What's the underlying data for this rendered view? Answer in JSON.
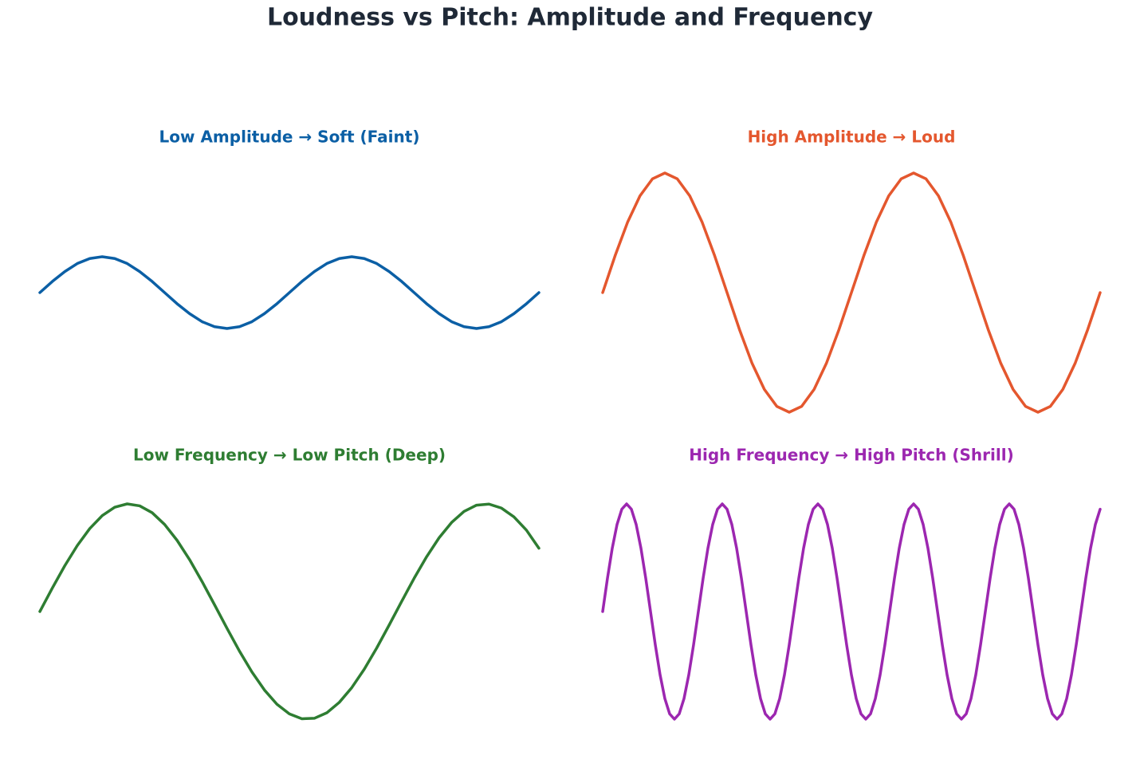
{
  "title": "Loudness vs Pitch: Amplitude and Frequency",
  "chart_data": [
    {
      "type": "line",
      "title": "Low Amplitude → Soft (Faint)",
      "xlim": [
        0,
        10.4
      ],
      "ylim": [
        -1.2,
        1.2
      ],
      "x": [
        0,
        0.26,
        0.52,
        0.78,
        1.04,
        1.3,
        1.56,
        1.82,
        2.08,
        2.34,
        2.6,
        2.86,
        3.12,
        3.38,
        3.64,
        3.9,
        4.16,
        4.42,
        4.68,
        4.94,
        5.2,
        5.46,
        5.72,
        5.98,
        6.24,
        6.5,
        6.76,
        7.02,
        7.28,
        7.54,
        7.8,
        8.06,
        8.32,
        8.58,
        8.84,
        9.1,
        9.36,
        9.62,
        9.88,
        10.14,
        10.4
      ],
      "series": [
        {
          "color": "#0b5fa5",
          "values": [
            0,
            0.093,
            0.176,
            0.243,
            0.285,
            0.3,
            0.285,
            0.243,
            0.176,
            0.093,
            0,
            -0.093,
            -0.176,
            -0.243,
            -0.285,
            -0.3,
            -0.285,
            -0.243,
            -0.176,
            -0.093,
            0,
            0.093,
            0.176,
            0.243,
            0.285,
            0.3,
            0.285,
            0.243,
            0.176,
            0.093,
            0,
            -0.093,
            -0.176,
            -0.243,
            -0.285,
            -0.3,
            -0.285,
            -0.243,
            -0.176,
            -0.093,
            0
          ]
        }
      ]
    },
    {
      "type": "line",
      "title": "High Amplitude → Loud",
      "xlim": [
        0,
        10.4
      ],
      "ylim": [
        -1.2,
        1.2
      ],
      "x": [
        0,
        0.26,
        0.52,
        0.78,
        1.04,
        1.3,
        1.56,
        1.82,
        2.08,
        2.34,
        2.6,
        2.86,
        3.12,
        3.38,
        3.64,
        3.9,
        4.16,
        4.42,
        4.68,
        4.94,
        5.2,
        5.46,
        5.72,
        5.98,
        6.24,
        6.5,
        6.76,
        7.02,
        7.28,
        7.54,
        7.8,
        8.06,
        8.32,
        8.58,
        8.84,
        9.1,
        9.36,
        9.62,
        9.88,
        10.14,
        10.4
      ],
      "series": [
        {
          "color": "#e4572e",
          "values": [
            0,
            0.309,
            0.588,
            0.809,
            0.951,
            1,
            0.951,
            0.809,
            0.588,
            0.309,
            0,
            -0.309,
            -0.588,
            -0.809,
            -0.951,
            -1,
            -0.951,
            -0.809,
            -0.588,
            -0.309,
            0,
            0.309,
            0.588,
            0.809,
            0.951,
            1,
            0.951,
            0.809,
            0.588,
            0.309,
            0,
            -0.309,
            -0.588,
            -0.809,
            -0.951,
            -1,
            -0.951,
            -0.809,
            -0.588,
            -0.309,
            0
          ]
        }
      ]
    },
    {
      "type": "line",
      "title": "Low Frequency → Low Pitch (Deep)",
      "xlim": [
        0,
        10.4
      ],
      "ylim": [
        -1.2,
        1.2
      ],
      "x": [
        0,
        0.26,
        0.52,
        0.78,
        1.04,
        1.3,
        1.56,
        1.82,
        2.08,
        2.34,
        2.6,
        2.86,
        3.12,
        3.38,
        3.64,
        3.9,
        4.16,
        4.42,
        4.68,
        4.94,
        5.2,
        5.46,
        5.72,
        5.98,
        6.24,
        6.5,
        6.76,
        7.02,
        7.28,
        7.54,
        7.8,
        8.06,
        8.32,
        8.58,
        8.84,
        9.1,
        9.36,
        9.62,
        9.88,
        10.14,
        10.4
      ],
      "series": [
        {
          "color": "#2e7d32",
          "values": [
            0,
            0.218,
            0.426,
            0.613,
            0.771,
            0.891,
            0.969,
            1,
            0.982,
            0.918,
            0.809,
            0.661,
            0.482,
            0.279,
            0.063,
            -0.156,
            -0.368,
            -0.562,
            -0.729,
            -0.861,
            -0.951,
            -0.996,
            -0.992,
            -0.941,
            -0.844,
            -0.707,
            -0.536,
            -0.339,
            -0.125,
            0.094,
            0.309,
            0.509,
            0.685,
            0.827,
            0.93,
            0.988,
            0.998,
            0.961,
            0.879,
            0.756,
            0.588
          ]
        }
      ]
    },
    {
      "type": "line",
      "title": "High Frequency → High Pitch (Shrill)",
      "xlim": [
        0,
        10.4
      ],
      "ylim": [
        -1.2,
        1.2
      ],
      "x": [
        0,
        0.1,
        0.2,
        0.3,
        0.4,
        0.5,
        0.6,
        0.7,
        0.8,
        0.9,
        1,
        1.1,
        1.2,
        1.3,
        1.4,
        1.5,
        1.6,
        1.7,
        1.8,
        1.9,
        2,
        2.1,
        2.2,
        2.3,
        2.4,
        2.5,
        2.6,
        2.7,
        2.8,
        2.9,
        3,
        3.1,
        3.2,
        3.3,
        3.4,
        3.5,
        3.6,
        3.7,
        3.8,
        3.9,
        4,
        4.1,
        4.2,
        4.3,
        4.4,
        4.5,
        4.6,
        4.7,
        4.8,
        4.9,
        5,
        5.1,
        5.2,
        5.3,
        5.4,
        5.5,
        5.6,
        5.7,
        5.8,
        5.9,
        6,
        6.1,
        6.2,
        6.3,
        6.4,
        6.5,
        6.6,
        6.7,
        6.8,
        6.9,
        7,
        7.1,
        7.2,
        7.3,
        7.4,
        7.5,
        7.6,
        7.7,
        7.8,
        7.9,
        8,
        8.1,
        8.2,
        8.3,
        8.4,
        8.5,
        8.6,
        8.7,
        8.8,
        8.9,
        9,
        9.1,
        9.2,
        9.3,
        9.4,
        9.5,
        9.6,
        9.7,
        9.8,
        9.9,
        10,
        10.1,
        10.2,
        10.3,
        10.4
      ],
      "series": [
        {
          "color": "#9c27b0",
          "values": [
            0,
            0.309,
            0.588,
            0.809,
            0.951,
            1,
            0.951,
            0.809,
            0.588,
            0.309,
            0,
            -0.309,
            -0.588,
            -0.809,
            -0.951,
            -1,
            -0.951,
            -0.809,
            -0.588,
            -0.309,
            0,
            0.309,
            0.588,
            0.809,
            0.951,
            1,
            0.951,
            0.809,
            0.588,
            0.309,
            0,
            -0.309,
            -0.588,
            -0.809,
            -0.951,
            -1,
            -0.951,
            -0.809,
            -0.588,
            -0.309,
            0,
            0.309,
            0.588,
            0.809,
            0.951,
            1,
            0.951,
            0.809,
            0.588,
            0.309,
            0,
            -0.309,
            -0.588,
            -0.809,
            -0.951,
            -1,
            -0.951,
            -0.809,
            -0.588,
            -0.309,
            0,
            0.309,
            0.588,
            0.809,
            0.951,
            1,
            0.951,
            0.809,
            0.588,
            0.309,
            0,
            -0.309,
            -0.588,
            -0.809,
            -0.951,
            -1,
            -0.951,
            -0.809,
            -0.588,
            -0.309,
            0,
            0.309,
            0.588,
            0.809,
            0.951,
            1,
            0.951,
            0.809,
            0.588,
            0.309,
            0,
            -0.309,
            -0.588,
            -0.809,
            -0.951,
            -1,
            -0.951,
            -0.809,
            -0.588,
            -0.309,
            0,
            0.309,
            0.588,
            0.809,
            0.951
          ]
        }
      ]
    }
  ]
}
